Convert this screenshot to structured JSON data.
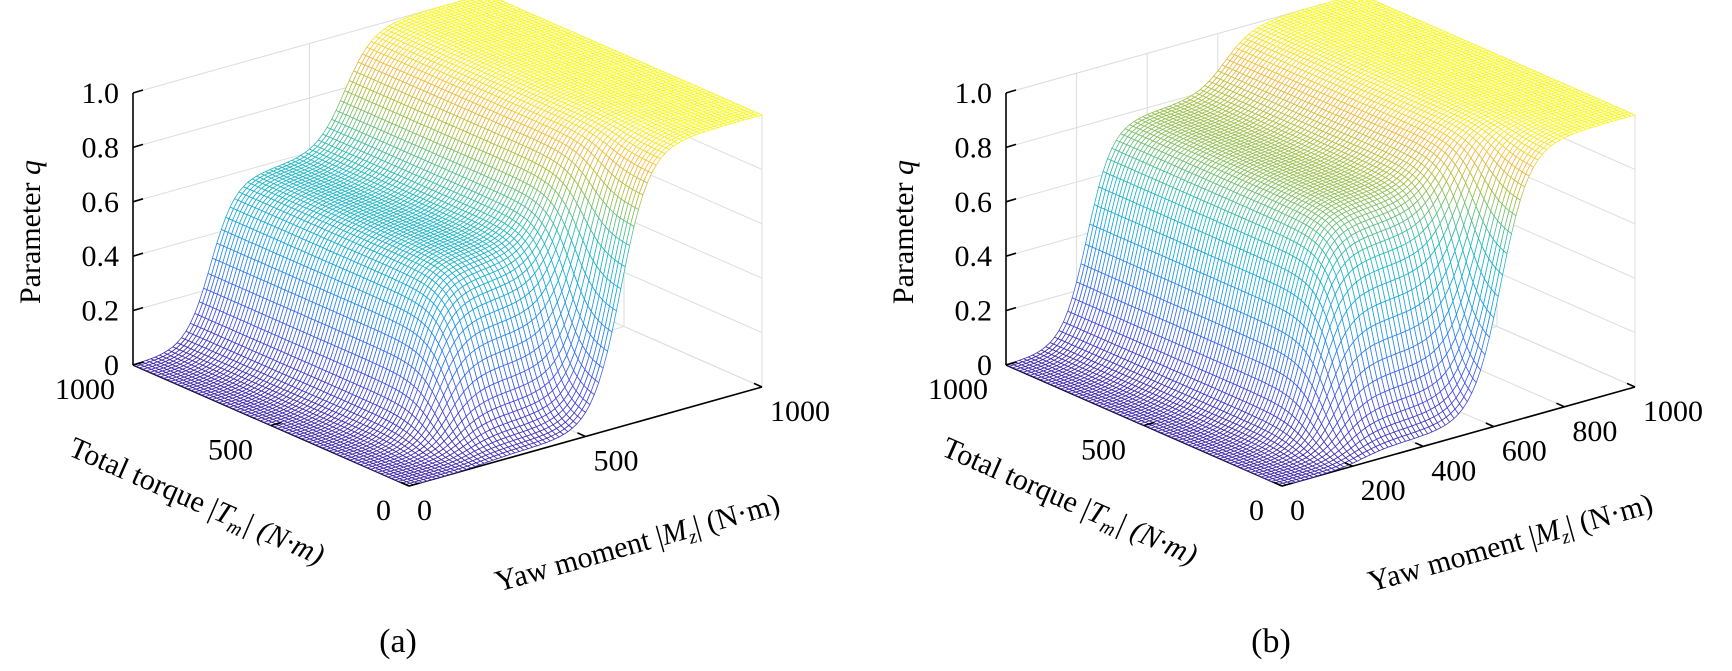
{
  "chart_data": [
    {
      "type": "surface",
      "panel_label": "(a)",
      "zlabel": {
        "text": "Parameter ",
        "var": "q"
      },
      "xlabel": {
        "text": "Total torque |",
        "var": "T",
        "sub": "m",
        "tail": "| (N·m)"
      },
      "ylabel": {
        "text": "Yaw moment |",
        "var": "M",
        "sub": "z",
        "tail": "| (N·m)"
      },
      "x_name": "Total torque |Tm|",
      "y_name": "Yaw moment |Mz|",
      "xlim": [
        0,
        1000
      ],
      "ylim": [
        0,
        1000
      ],
      "zlim": [
        0,
        1
      ],
      "x_ticks": [
        0,
        500,
        1000
      ],
      "x_tick_labels": [
        "0",
        "500",
        "1000"
      ],
      "y_ticks": [
        0,
        500,
        1000
      ],
      "y_tick_labels": [
        "0",
        "500",
        "1000"
      ],
      "z_ticks": [
        0,
        0.2,
        0.4,
        0.6,
        0.8,
        1.0
      ],
      "z_tick_labels": [
        "0",
        "0.2",
        "0.4",
        "0.6",
        "0.8",
        "1.0"
      ],
      "grid": true,
      "colormap": "parula",
      "surface": {
        "low_q": 0,
        "plateau_q": 0.58,
        "high_q": 1.0,
        "yaw_step_to_plateau_at": 220,
        "yaw_step_to_high_at": 600,
        "torque_step_to_plateau_at": 150
      }
    },
    {
      "type": "surface",
      "panel_label": "(b)",
      "zlabel": {
        "text": "Parameter ",
        "var": "q"
      },
      "xlabel": {
        "text": "Total torque |",
        "var": "T",
        "sub": "m",
        "tail": "| (N·m)"
      },
      "ylabel": {
        "text": "Yaw moment |",
        "var": "M",
        "sub": "z",
        "tail": "| (N·m)"
      },
      "x_name": "Total torque |Tm|",
      "y_name": "Yaw moment |Mz|",
      "xlim": [
        0,
        1000
      ],
      "ylim": [
        0,
        1000
      ],
      "zlim": [
        0,
        1
      ],
      "x_ticks": [
        0,
        500,
        1000
      ],
      "x_tick_labels": [
        "0",
        "500",
        "1000"
      ],
      "y_ticks": [
        0,
        200,
        400,
        600,
        800,
        1000
      ],
      "y_tick_labels": [
        "0",
        "200",
        "400",
        "600",
        "800",
        "1000"
      ],
      "z_ticks": [
        0,
        0.2,
        0.4,
        0.6,
        0.8,
        1.0
      ],
      "z_tick_labels": [
        "0",
        "0.2",
        "0.4",
        "0.6",
        "0.8",
        "1.0"
      ],
      "grid": true,
      "colormap": "parula",
      "surface": {
        "low_q": 0,
        "plateau_q": 0.78,
        "high_q": 1.0,
        "yaw_step_to_plateau_at": 230,
        "yaw_step_to_high_at": 620,
        "torque_step_to_plateau_at": 120
      }
    }
  ],
  "colors": {
    "parula": [
      "#3e26a8",
      "#4450ee",
      "#2f80f5",
      "#1aa6dc",
      "#20b9c0",
      "#5cc08c",
      "#a8c040",
      "#f5b83e",
      "#f9f914"
    ],
    "grid": "#dddddd",
    "axis": "#000000"
  }
}
